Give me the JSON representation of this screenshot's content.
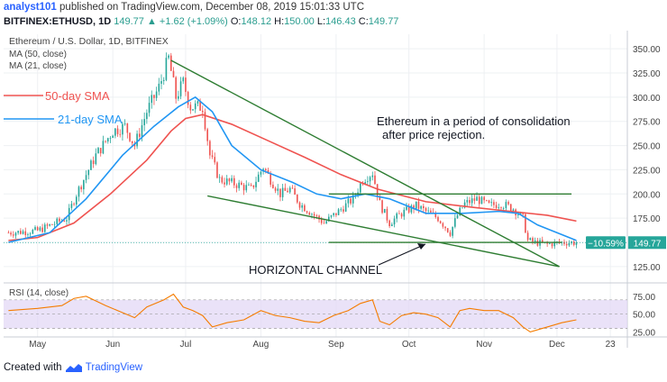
{
  "header": {
    "author": "analyst101",
    "published_text": "published on TradingView.com, December 08, 2019 15:01:33 UTC",
    "symbol": "BITFINEX:ETHUSD, 1D",
    "last": "149.77",
    "change": "▲ +1.62 (+1.09%)",
    "o_label": "O:",
    "o_value": "148.12",
    "h_label": "H:",
    "h_value": "150.00",
    "l_label": "L:",
    "l_value": "146.43",
    "c_label": "C:",
    "c_value": "149.77"
  },
  "footer": {
    "created_with": "Created with",
    "brand": "TradingView"
  },
  "colors": {
    "up": "#26a69a",
    "down": "#ef5350",
    "ma50": "#ef5350",
    "ma21": "#2196f3",
    "trend": "#2e7d32",
    "rsi": "#f57c00",
    "rsi_band": "#e1d5f5",
    "price_tag": "#26a69a"
  },
  "chart_data": [
    {
      "type": "candlestick",
      "title": "Ethereum / U.S. Dollar, 1D, BITFINEX",
      "legend": [
        "MA (50, close)",
        "MA (21, close)"
      ],
      "x_ticks": [
        "May",
        "Jun",
        "Jul",
        "Aug",
        "Sep",
        "Oct",
        "Nov",
        "Dec",
        "23"
      ],
      "x_tick_days": [
        0,
        31,
        61,
        92,
        123,
        153,
        184,
        214,
        236
      ],
      "y_ticks": [
        125,
        150,
        175,
        200,
        225,
        250,
        275,
        300,
        325,
        350
      ],
      "ylim": [
        110,
        365
      ],
      "xlim": [
        -14,
        243
      ],
      "last_price_label": "149.77",
      "pct_label": "−10.59%",
      "last_price": 149.77,
      "control_points": [
        [
          -12,
          160
        ],
        [
          0,
          162
        ],
        [
          12,
          175
        ],
        [
          16,
          200
        ],
        [
          24,
          240
        ],
        [
          31,
          265
        ],
        [
          36,
          270
        ],
        [
          40,
          250
        ],
        [
          45,
          285
        ],
        [
          50,
          310
        ],
        [
          54,
          340
        ],
        [
          57,
          300
        ],
        [
          60,
          315
        ],
        [
          63,
          290
        ],
        [
          68,
          290
        ],
        [
          71,
          240
        ],
        [
          75,
          215
        ],
        [
          82,
          210
        ],
        [
          88,
          205
        ],
        [
          93,
          228
        ],
        [
          96,
          215
        ],
        [
          100,
          200
        ],
        [
          104,
          205
        ],
        [
          108,
          190
        ],
        [
          114,
          178
        ],
        [
          118,
          170
        ],
        [
          124,
          182
        ],
        [
          130,
          195
        ],
        [
          134,
          215
        ],
        [
          138,
          222
        ],
        [
          141,
          190
        ],
        [
          145,
          170
        ],
        [
          150,
          180
        ],
        [
          156,
          188
        ],
        [
          160,
          182
        ],
        [
          165,
          175
        ],
        [
          170,
          160
        ],
        [
          173,
          178
        ],
        [
          176,
          190
        ],
        [
          181,
          195
        ],
        [
          186,
          188
        ],
        [
          191,
          190
        ],
        [
          196,
          185
        ],
        [
          200,
          175
        ],
        [
          202,
          152
        ],
        [
          205,
          150
        ],
        [
          210,
          148
        ],
        [
          216,
          150
        ],
        [
          222,
          149.77
        ]
      ],
      "series": [
        {
          "name": "50-day SMA",
          "points": [
            [
              -12,
              152
            ],
            [
              0,
              155
            ],
            [
              15,
              170
            ],
            [
              30,
              200
            ],
            [
              45,
              235
            ],
            [
              55,
              265
            ],
            [
              61,
              278
            ],
            [
              68,
              282
            ],
            [
              80,
              272
            ],
            [
              95,
              255
            ],
            [
              110,
              238
            ],
            [
              125,
              220
            ],
            [
              140,
              205
            ],
            [
              160,
              192
            ],
            [
              180,
              186
            ],
            [
              195,
              182
            ],
            [
              210,
              178
            ],
            [
              222,
              172
            ]
          ]
        },
        {
          "name": "21-day SMA",
          "points": [
            [
              -12,
              150
            ],
            [
              5,
              160
            ],
            [
              20,
              195
            ],
            [
              35,
              240
            ],
            [
              48,
              270
            ],
            [
              58,
              290
            ],
            [
              65,
              300
            ],
            [
              72,
              285
            ],
            [
              80,
              250
            ],
            [
              92,
              225
            ],
            [
              105,
              212
            ],
            [
              115,
              200
            ],
            [
              125,
              195
            ],
            [
              135,
              200
            ],
            [
              145,
              195
            ],
            [
              160,
              180
            ],
            [
              175,
              180
            ],
            [
              190,
              182
            ],
            [
              198,
              180
            ],
            [
              206,
              168
            ],
            [
              214,
              160
            ],
            [
              222,
              152
            ]
          ]
        }
      ],
      "annotations": [
        {
          "text": "50-day SMA"
        },
        {
          "text": "21-day SMA"
        },
        {
          "text": "Ethereum in a period of consolidation"
        },
        {
          "text": "after price rejection."
        },
        {
          "text": "HORIZONTAL CHANNEL"
        }
      ],
      "trendlines": [
        [
          [
            55,
            338
          ],
          [
            215,
            125
          ]
        ],
        [
          [
            70,
            198
          ],
          [
            215,
            125
          ]
        ],
        [
          [
            120,
            200
          ],
          [
            220,
            200
          ]
        ],
        [
          [
            120,
            150
          ],
          [
            216,
            150
          ]
        ]
      ]
    },
    {
      "type": "line",
      "title": "RSI (14, close)",
      "y_ticks": [
        25,
        50,
        75
      ],
      "ylim": [
        18,
        90
      ],
      "band": [
        30,
        70
      ],
      "points": [
        [
          -12,
          55
        ],
        [
          0,
          58
        ],
        [
          10,
          62
        ],
        [
          15,
          72
        ],
        [
          20,
          75
        ],
        [
          28,
          62
        ],
        [
          33,
          55
        ],
        [
          40,
          45
        ],
        [
          45,
          60
        ],
        [
          52,
          70
        ],
        [
          56,
          78
        ],
        [
          60,
          60
        ],
        [
          64,
          55
        ],
        [
          68,
          48
        ],
        [
          72,
          32
        ],
        [
          78,
          38
        ],
        [
          85,
          42
        ],
        [
          92,
          55
        ],
        [
          98,
          48
        ],
        [
          104,
          45
        ],
        [
          110,
          40
        ],
        [
          116,
          38
        ],
        [
          122,
          48
        ],
        [
          128,
          55
        ],
        [
          133,
          65
        ],
        [
          138,
          70
        ],
        [
          141,
          40
        ],
        [
          145,
          35
        ],
        [
          150,
          48
        ],
        [
          155,
          52
        ],
        [
          160,
          50
        ],
        [
          165,
          45
        ],
        [
          170,
          32
        ],
        [
          174,
          55
        ],
        [
          178,
          58
        ],
        [
          184,
          55
        ],
        [
          190,
          55
        ],
        [
          196,
          45
        ],
        [
          200,
          32
        ],
        [
          203,
          25
        ],
        [
          206,
          28
        ],
        [
          210,
          32
        ],
        [
          216,
          38
        ],
        [
          222,
          42
        ]
      ]
    }
  ]
}
